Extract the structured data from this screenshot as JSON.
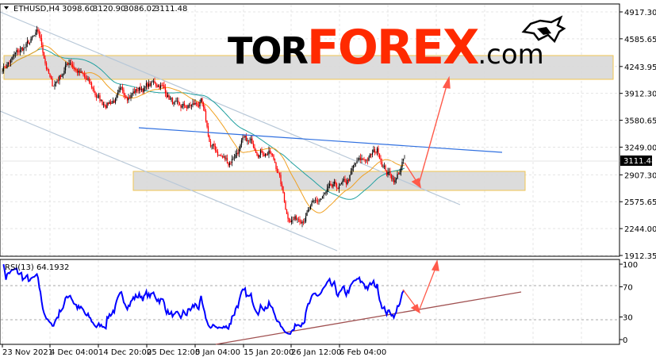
{
  "header": {
    "symbol": "ETHUSD,H4",
    "open": "3098.60",
    "high": "3120.90",
    "low": "3086.02",
    "close": "3111.48"
  },
  "logo": {
    "part1": "TOR",
    "part2": "FOREX",
    "part3": ".com"
  },
  "colors": {
    "bull": "#000000",
    "bear": "#ff0000",
    "rsi": "#0000ff",
    "ma_fast": "#f0a020",
    "ma_slow": "#20a0a0",
    "trend": "#3070e0",
    "arrow": "#ff5a4a",
    "rsi_trend": "#a05050",
    "zone": "#d9d9d9",
    "zone_border": "#f0c040"
  },
  "chart_data": [
    {
      "type": "candlestick",
      "title": "ETHUSD,H4",
      "y_ticks": [
        "4917.30",
        "4585.65",
        "4243.95",
        "3912.30",
        "3580.65",
        "3249.00",
        "2907.30",
        "2575.65",
        "2244.00",
        "1912.35"
      ],
      "ylim": [
        1912.35,
        4917.3
      ],
      "current_price": "3111.48",
      "x_ticks": [
        "23 Nov 2021",
        "4 Dec 04:00",
        "14 Dec 20:00",
        "25 Dec 12:00",
        "5 Jan 04:00",
        "15 Jan 20:00",
        "26 Jan 12:00",
        "6 Feb 04:00"
      ],
      "grid": true,
      "price_waypoints": [
        {
          "date": "2021-11-23",
          "price": 4230
        },
        {
          "date": "2021-11-26",
          "price": 4380
        },
        {
          "date": "2021-12-01",
          "price": 4620
        },
        {
          "date": "2021-12-04",
          "price": 3990
        },
        {
          "date": "2021-12-08",
          "price": 4330
        },
        {
          "date": "2021-12-15",
          "price": 3790
        },
        {
          "date": "2021-12-24",
          "price": 3990
        },
        {
          "date": "2021-12-28",
          "price": 4040
        },
        {
          "date": "2022-01-01",
          "price": 3690
        },
        {
          "date": "2022-01-06",
          "price": 3790
        },
        {
          "date": "2022-01-08",
          "price": 3250
        },
        {
          "date": "2022-01-12",
          "price": 3060
        },
        {
          "date": "2022-01-15",
          "price": 3300
        },
        {
          "date": "2022-01-21",
          "price": 3210
        },
        {
          "date": "2022-01-23",
          "price": 2960
        },
        {
          "date": "2022-01-25",
          "price": 2420
        },
        {
          "date": "2022-01-27",
          "price": 2375
        },
        {
          "date": "2022-01-31",
          "price": 2520
        },
        {
          "date": "2022-02-03",
          "price": 2670
        },
        {
          "date": "2022-02-07",
          "price": 2770
        },
        {
          "date": "2022-02-09",
          "price": 3010
        },
        {
          "date": "2022-02-12",
          "price": 3110
        },
        {
          "date": "2022-02-14",
          "price": 3210
        },
        {
          "date": "2022-02-16",
          "price": 2960
        },
        {
          "date": "2022-02-18",
          "price": 2860
        },
        {
          "date": "2022-02-20",
          "price": 3111.48
        }
      ]
    },
    {
      "type": "line",
      "title": "RSI(13) 64.1932",
      "label": "RSI(13)",
      "value": "64.1932",
      "y_ticks": [
        "100",
        "70",
        "30",
        "0"
      ],
      "ylim": [
        0,
        100
      ],
      "levels": [
        70,
        30
      ]
    }
  ]
}
